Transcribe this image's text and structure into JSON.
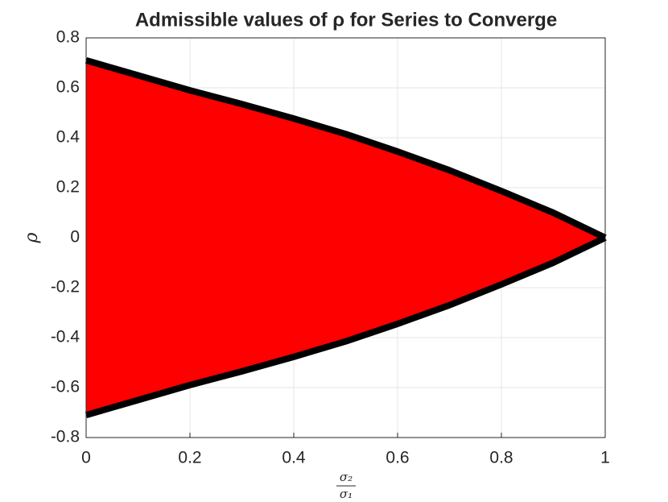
{
  "chart_data": {
    "type": "band",
    "title": "Admissible values of ρ for Series to Converge",
    "y_label": "ρ",
    "x_label": {
      "numerator": "σ₂",
      "denominator": "σ₁"
    },
    "x": [
      0,
      0.1,
      0.2,
      0.3,
      0.4,
      0.5,
      0.6,
      0.7,
      0.8,
      0.9,
      1
    ],
    "series": [
      {
        "values": [
          0.71,
          0.65,
          0.59,
          0.535,
          0.477,
          0.415,
          0.345,
          0.27,
          0.187,
          0.1,
          0
        ]
      },
      {
        "values": [
          -0.71,
          -0.65,
          -0.59,
          -0.535,
          -0.477,
          -0.415,
          -0.345,
          -0.27,
          -0.187,
          -0.1,
          0
        ]
      }
    ],
    "fill_color": "#ff0000",
    "line_color": "#000000",
    "xlim": [
      0,
      1
    ],
    "ylim": [
      -0.8,
      0.8
    ],
    "xticks": [
      0,
      0.2,
      0.4,
      0.6,
      0.8,
      1
    ],
    "yticks": [
      -0.8,
      -0.6,
      -0.4,
      -0.2,
      0,
      0.2,
      0.4,
      0.6,
      0.8
    ],
    "grid": true
  }
}
